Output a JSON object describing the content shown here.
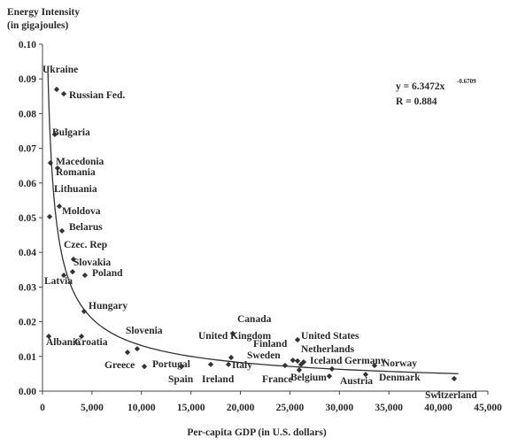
{
  "chart_data": {
    "type": "scatter",
    "ylabel": [
      "Energy Intensity",
      "(in gigajoules)"
    ],
    "xlabel": "Per-capita GDP (in U.S. dollars)",
    "labels": [
      "Ukraine",
      "Russian Fed.",
      "Bulgaria",
      "Macedonia",
      "Romania",
      "Lithuania",
      "Moldova",
      "Belarus",
      "Czec. Rep",
      "Slovakia",
      "Poland",
      "Latvia",
      "Hungary",
      "Albania",
      "Croatia",
      "Slovenia",
      "Greece",
      "Portugal",
      "Spain",
      "Ireland",
      "Italy",
      "Canada",
      "United Kingdom",
      "Finland",
      "France",
      "Sweden",
      "United States",
      "Netherlands",
      "Iceland",
      "Belgium",
      "Germany",
      "Austria",
      "Norway",
      "Denmark",
      "Switzerland"
    ],
    "x": [
      1430,
      2150,
      1250,
      800,
      1520,
      1700,
      720,
      1970,
      3130,
      3040,
      4290,
      2150,
      4200,
      630,
      3940,
      9570,
      8590,
      10290,
      14040,
      17000,
      18790,
      19230,
      19060,
      25300,
      24510,
      25770,
      25770,
      26120,
      26390,
      25940,
      29250,
      28980,
      33550,
      32650,
      41600
    ],
    "values": [
      0.087,
      0.0857,
      0.074,
      0.0658,
      0.0643,
      0.0533,
      0.0503,
      0.0462,
      0.038,
      0.0344,
      0.0334,
      0.0334,
      0.023,
      0.0158,
      0.0158,
      0.0122,
      0.0112,
      0.0071,
      0.0071,
      0.0077,
      0.0077,
      0.0166,
      0.0097,
      0.0089,
      0.0074,
      0.0087,
      0.0148,
      0.0077,
      0.0084,
      0.0061,
      0.0064,
      0.0043,
      0.0074,
      0.0048,
      0.0036
    ],
    "color": "#333333",
    "xlim": [
      0,
      45000
    ],
    "ylim": [
      0,
      0.1
    ],
    "xticks": [
      0,
      {
        "value": 5000,
        "label": "5,000"
      },
      {
        "value": 10000,
        "label": "10,000"
      },
      {
        "value": 15000,
        "label": "15,000"
      },
      {
        "value": 20000,
        "label": "20,000"
      },
      {
        "value": 25000,
        "label": "25,000"
      },
      {
        "value": 30000,
        "label": "30,000"
      },
      {
        "value": 35000,
        "label": "35,000"
      },
      {
        "value": 40000,
        "label": "40,000"
      },
      {
        "value": 45000,
        "label": "45,000"
      }
    ],
    "yticks": [
      {
        "value": 0,
        "label": "0.00"
      },
      0.01,
      0.02,
      0.03,
      0.04,
      0.05,
      0.06,
      0.07,
      0.08,
      0.09,
      {
        "value": 0.1,
        "label": "0.10"
      }
    ],
    "annotations": {
      "equation": "y = 6.3472x",
      "exponent": "-0.6709",
      "r": "R = 0.884"
    }
  }
}
